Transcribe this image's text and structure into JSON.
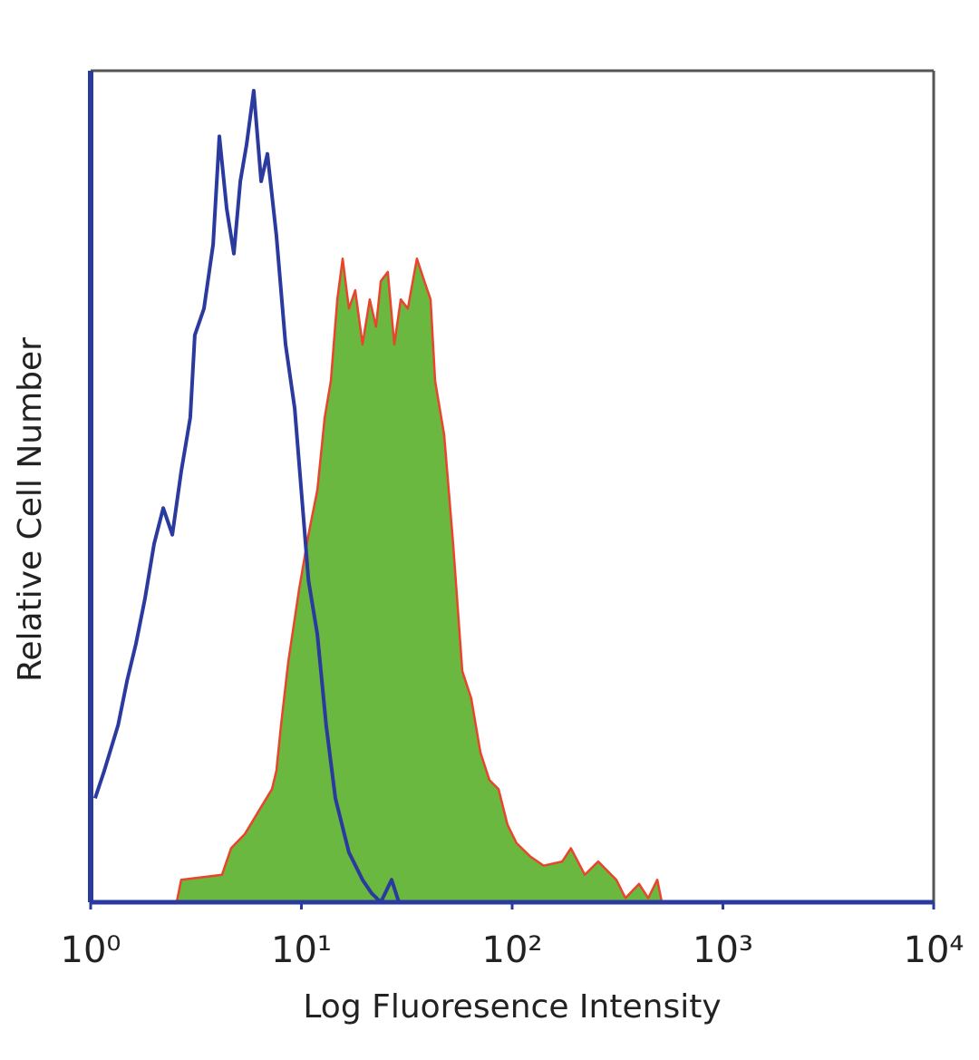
{
  "chart_data": {
    "type": "histogram-overlay",
    "xlabel": "Log Fluoresence Intensity",
    "ylabel": "Relative Cell Number",
    "xscale": "log",
    "xlim": [
      1,
      10000
    ],
    "ylim": [
      0,
      100
    ],
    "xticks": [
      {
        "value": 1,
        "label": "10⁰"
      },
      {
        "value": 10,
        "label": "10¹"
      },
      {
        "value": 100,
        "label": "10²"
      },
      {
        "value": 1000,
        "label": "10³"
      },
      {
        "value": 10000,
        "label": "10⁴"
      }
    ],
    "series": [
      {
        "color": "#2b3a9e",
        "x": [
          1.05,
          1.16,
          1.35,
          1.49,
          1.64,
          1.81,
          2.0,
          2.21,
          2.44,
          2.69,
          2.97,
          3.12,
          3.45,
          3.81,
          4.08,
          4.42,
          4.78,
          5.13,
          5.49,
          5.94,
          6.44,
          6.9,
          7.61,
          8.41,
          9.29,
          10.3,
          10.8,
          11.9,
          13.1,
          14.5,
          16.8,
          19.5,
          21.5,
          23.8,
          26.8,
          29.0,
          10000
        ],
        "values": [
          12.5,
          15.8,
          21.3,
          26.7,
          31.1,
          36.5,
          43.1,
          47.4,
          44.2,
          51.8,
          58.3,
          68.2,
          71.4,
          79.1,
          92.1,
          83.4,
          78.0,
          86.7,
          91.1,
          97.6,
          86.7,
          90.0,
          80.2,
          67.1,
          59.4,
          45.3,
          38.7,
          32.2,
          21.3,
          12.5,
          6.0,
          2.7,
          1.1,
          0,
          2.7,
          0,
          0
        ]
      },
      {
        "color": "#e8452c",
        "fill": "#6ab83f",
        "x": [
          1,
          2.56,
          2.69,
          4.2,
          4.64,
          5.39,
          6.25,
          7.25,
          7.61,
          8.0,
          8.66,
          9.75,
          10.8,
          11.9,
          12.9,
          13.8,
          14.8,
          15.7,
          16.8,
          18.0,
          19.5,
          21.1,
          22.6,
          23.8,
          25.7,
          27.6,
          29.6,
          32.0,
          35.3,
          38.3,
          41.0,
          43.1,
          47.6,
          52.5,
          58.0,
          64.0,
          70.7,
          78.0,
          86.2,
          95.1,
          105,
          122,
          141,
          173,
          190,
          221,
          256,
          312,
          345,
          400,
          442,
          488,
          513
        ],
        "values": [
          0,
          0,
          2.7,
          3.3,
          6.5,
          8.2,
          10.9,
          13.6,
          15.8,
          21.3,
          28.9,
          37.6,
          44.2,
          49.6,
          58.3,
          62.7,
          72.5,
          77.4,
          71.4,
          73.6,
          67.1,
          72.5,
          69.2,
          74.7,
          75.8,
          67.1,
          72.5,
          71.4,
          77.4,
          74.7,
          72.5,
          62.7,
          56.2,
          43.1,
          27.8,
          24.5,
          18.0,
          14.7,
          13.6,
          9.3,
          7.1,
          5.5,
          4.4,
          4.9,
          6.5,
          3.3,
          4.9,
          2.7,
          0.5,
          2.2,
          0.5,
          2.7,
          0
        ]
      }
    ]
  }
}
